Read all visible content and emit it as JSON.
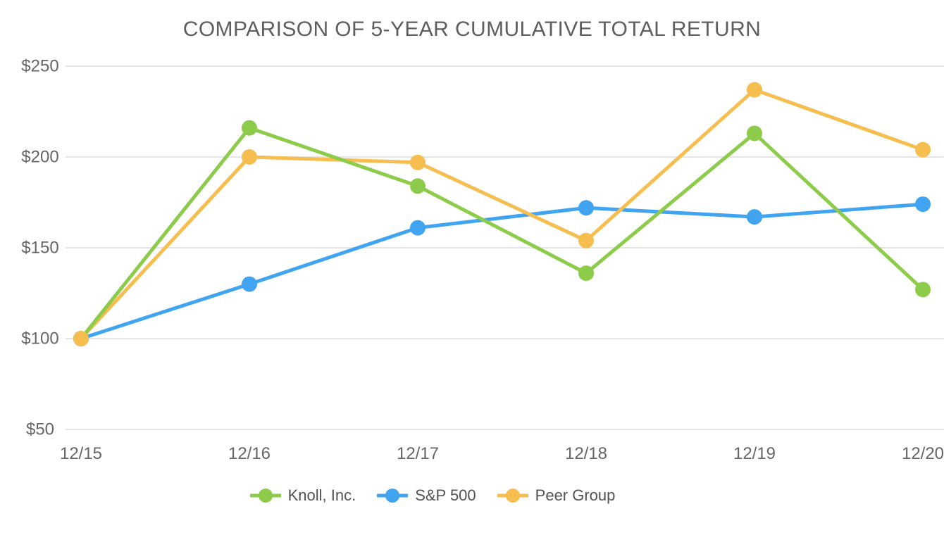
{
  "chart_data": {
    "type": "line",
    "title": "COMPARISON OF 5-YEAR CUMULATIVE TOTAL RETURN",
    "categories": [
      "12/15",
      "12/16",
      "12/17",
      "12/18",
      "12/19",
      "12/20"
    ],
    "series": [
      {
        "name": "Knoll, Inc.",
        "color": "#8DCC4A",
        "values": [
          100,
          216,
          184,
          136,
          213,
          127
        ]
      },
      {
        "name": "S&P 500",
        "color": "#40A4F1",
        "values": [
          100,
          130,
          161,
          172,
          167,
          174
        ]
      },
      {
        "name": "Peer Group",
        "color": "#F6BD4F",
        "values": [
          100,
          200,
          197,
          154,
          237,
          204
        ]
      }
    ],
    "y_ticks": [
      {
        "value": 250,
        "label": "$250"
      },
      {
        "value": 200,
        "label": "$200"
      },
      {
        "value": 150,
        "label": "$150"
      },
      {
        "value": 100,
        "label": "$100"
      },
      {
        "value": 50,
        "label": "$50"
      }
    ],
    "ylim": [
      50,
      250
    ],
    "grid": "horizontal",
    "legend_position": "bottom",
    "title_color": "#5E5E5E",
    "axis_label_color": "#666666",
    "gridline_color": "#E5E5E5",
    "legend_text_color": "#525252"
  }
}
